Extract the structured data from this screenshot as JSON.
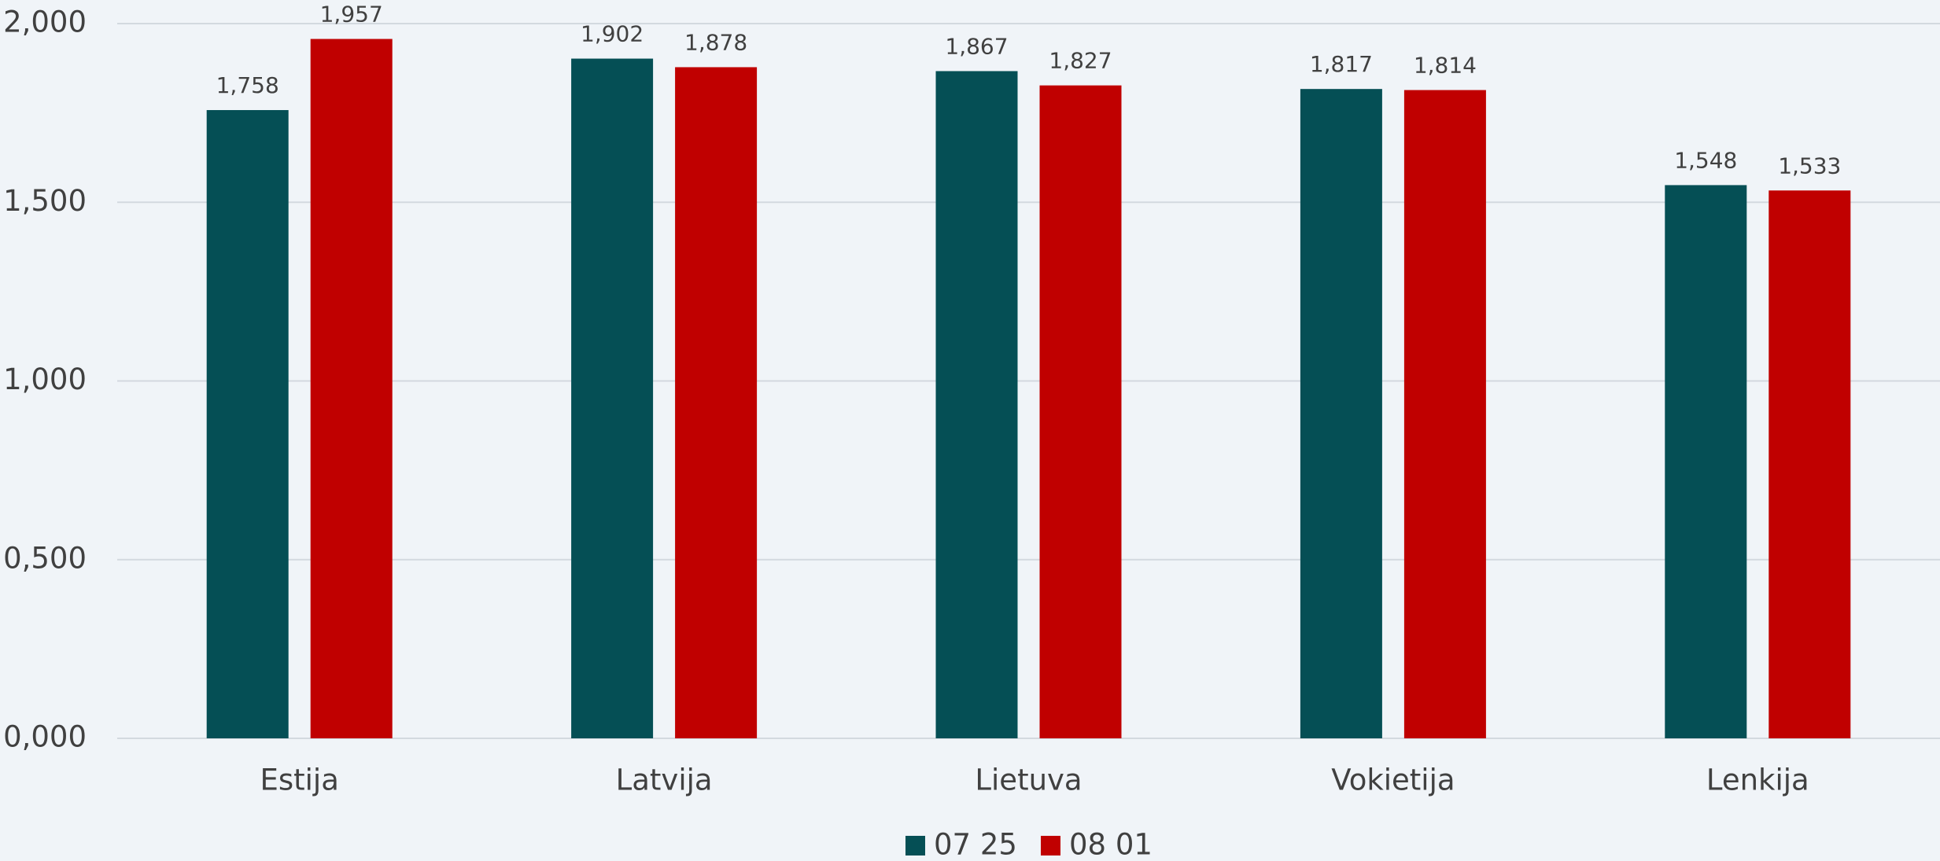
{
  "chart_data": {
    "type": "bar",
    "categories": [
      "Estija",
      "Latvija",
      "Lietuva",
      "Vokietija",
      "Lenkija"
    ],
    "series": [
      {
        "name": "07 25",
        "color": "#054f55",
        "values": [
          1.758,
          1.902,
          1.867,
          1.817,
          1.548
        ],
        "value_labels": [
          "1,758",
          "1,902",
          "1,867",
          "1,817",
          "1,548"
        ]
      },
      {
        "name": "08 01",
        "color": "#c00000",
        "values": [
          1.957,
          1.878,
          1.827,
          1.814,
          1.533
        ],
        "value_labels": [
          "1,957",
          "1,878",
          "1,827",
          "1,814",
          "1,533"
        ]
      }
    ],
    "ylim": [
      0,
      2
    ],
    "yticks": [
      {
        "value": 0,
        "label": "0,000"
      },
      {
        "value": 0.5,
        "label": "0,500"
      },
      {
        "value": 1,
        "label": "1,000"
      },
      {
        "value": 1.5,
        "label": "1,500"
      },
      {
        "value": 2,
        "label": "2,000"
      }
    ],
    "grid": true,
    "legend": "bottom"
  }
}
